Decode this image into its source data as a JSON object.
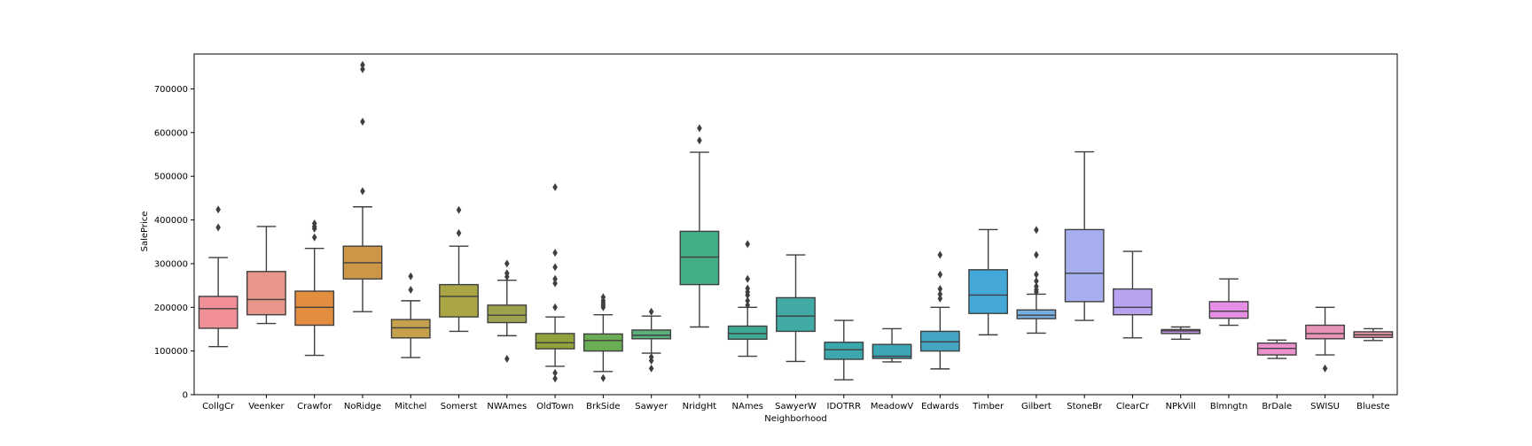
{
  "chart_data": {
    "type": "box",
    "xlabel": "Neighborhood",
    "ylabel": "SalePrice",
    "ylim": [
      0,
      780000
    ],
    "yticks": [
      0,
      100000,
      200000,
      300000,
      400000,
      500000,
      600000,
      700000
    ],
    "grid": false,
    "categories": [
      "CollgCr",
      "Veenker",
      "Crawfor",
      "NoRidge",
      "Mitchel",
      "Somerst",
      "NWAmes",
      "OldTown",
      "BrkSide",
      "Sawyer",
      "NridgHt",
      "NAmes",
      "SawyerW",
      "IDOTRR",
      "MeadowV",
      "Edwards",
      "Timber",
      "Gilbert",
      "StoneBr",
      "ClearCr",
      "NPkVill",
      "Blmngtn",
      "BrDale",
      "SWISU",
      "Blueste"
    ],
    "colors": [
      "#f08f98",
      "#e9978b",
      "#e28d3f",
      "#cc9848",
      "#c5a14d",
      "#aaa646",
      "#9ca24d",
      "#8fa23c",
      "#69ad55",
      "#5ab17c",
      "#43ad85",
      "#3fab95",
      "#42aaa4",
      "#3aa8ad",
      "#3ca6b4",
      "#44a5c4",
      "#43a8d8",
      "#76aedd",
      "#a6aeed",
      "#b7a3ef",
      "#cf94eb",
      "#e68ee3",
      "#ea91ce",
      "#ea93b8",
      "#f29aac"
    ],
    "boxes": [
      {
        "whisker_low": 110000,
        "q1": 152000,
        "median": 197000,
        "q3": 225000,
        "whisker_high": 314000,
        "outliers": [
          383000,
          424000
        ]
      },
      {
        "whisker_low": 163000,
        "q1": 183000,
        "median": 218000,
        "q3": 282000,
        "whisker_high": 385000,
        "outliers": []
      },
      {
        "whisker_low": 90000,
        "q1": 159000,
        "median": 200000,
        "q3": 237000,
        "whisker_high": 335000,
        "outliers": [
          360000,
          380000,
          385000,
          392000
        ]
      },
      {
        "whisker_low": 190000,
        "q1": 265000,
        "median": 302000,
        "q3": 340000,
        "whisker_high": 430000,
        "outliers": [
          466000,
          625000,
          745000,
          755000
        ]
      },
      {
        "whisker_low": 85000,
        "q1": 130000,
        "median": 153000,
        "q3": 172000,
        "whisker_high": 215000,
        "outliers": [
          240000,
          271000
        ]
      },
      {
        "whisker_low": 145000,
        "q1": 178000,
        "median": 225000,
        "q3": 252000,
        "whisker_high": 340000,
        "outliers": [
          370000,
          423000
        ]
      },
      {
        "whisker_low": 135000,
        "q1": 165000,
        "median": 182000,
        "q3": 205000,
        "whisker_high": 262000,
        "outliers": [
          82000,
          270000,
          278000,
          300000
        ]
      },
      {
        "whisker_low": 65000,
        "q1": 105000,
        "median": 119000,
        "q3": 140000,
        "whisker_high": 178000,
        "outliers": [
          37000,
          50000,
          200000,
          255000,
          265000,
          292000,
          325000,
          475000
        ]
      },
      {
        "whisker_low": 53000,
        "q1": 100000,
        "median": 124000,
        "q3": 139000,
        "whisker_high": 183000,
        "outliers": [
          38000,
          200000,
          205000,
          210000,
          215000,
          223000
        ]
      },
      {
        "whisker_low": 95000,
        "q1": 128000,
        "median": 136000,
        "q3": 148000,
        "whisker_high": 180000,
        "outliers": [
          60000,
          78000,
          86000,
          190000
        ]
      },
      {
        "whisker_low": 155000,
        "q1": 252000,
        "median": 315000,
        "q3": 374000,
        "whisker_high": 555000,
        "outliers": [
          582000,
          610000
        ]
      },
      {
        "whisker_low": 88000,
        "q1": 127000,
        "median": 140000,
        "q3": 157000,
        "whisker_high": 200000,
        "outliers": [
          205000,
          215000,
          228000,
          235000,
          243000,
          265000,
          345000
        ]
      },
      {
        "whisker_low": 76000,
        "q1": 145000,
        "median": 180000,
        "q3": 222000,
        "whisker_high": 320000,
        "outliers": []
      },
      {
        "whisker_low": 34000,
        "q1": 81000,
        "median": 103000,
        "q3": 120000,
        "whisker_high": 170000,
        "outliers": []
      },
      {
        "whisker_low": 75000,
        "q1": 83000,
        "median": 88000,
        "q3": 115000,
        "whisker_high": 151000,
        "outliers": []
      },
      {
        "whisker_low": 59000,
        "q1": 100000,
        "median": 121000,
        "q3": 145000,
        "whisker_high": 200000,
        "outliers": [
          220000,
          230000,
          242000,
          275000,
          320000
        ]
      },
      {
        "whisker_low": 137000,
        "q1": 186000,
        "median": 228000,
        "q3": 286000,
        "whisker_high": 378000,
        "outliers": []
      },
      {
        "whisker_low": 141000,
        "q1": 174000,
        "median": 182000,
        "q3": 194000,
        "whisker_high": 230000,
        "outliers": [
          235000,
          240000,
          248000,
          260000,
          275000,
          320000,
          377000
        ]
      },
      {
        "whisker_low": 170000,
        "q1": 213000,
        "median": 278000,
        "q3": 378000,
        "whisker_high": 556000,
        "outliers": []
      },
      {
        "whisker_low": 130000,
        "q1": 183000,
        "median": 200000,
        "q3": 242000,
        "whisker_high": 328000,
        "outliers": []
      },
      {
        "whisker_low": 127000,
        "q1": 140000,
        "median": 146000,
        "q3": 149000,
        "whisker_high": 155000,
        "outliers": []
      },
      {
        "whisker_low": 159000,
        "q1": 175000,
        "median": 191000,
        "q3": 213000,
        "whisker_high": 265000,
        "outliers": []
      },
      {
        "whisker_low": 83000,
        "q1": 91000,
        "median": 106000,
        "q3": 118000,
        "whisker_high": 125000,
        "outliers": []
      },
      {
        "whisker_low": 91000,
        "q1": 128000,
        "median": 140000,
        "q3": 159000,
        "whisker_high": 200000,
        "outliers": [
          60000
        ]
      },
      {
        "whisker_low": 124000,
        "q1": 131000,
        "median": 137000,
        "q3": 144000,
        "whisker_high": 151000,
        "outliers": []
      }
    ]
  }
}
